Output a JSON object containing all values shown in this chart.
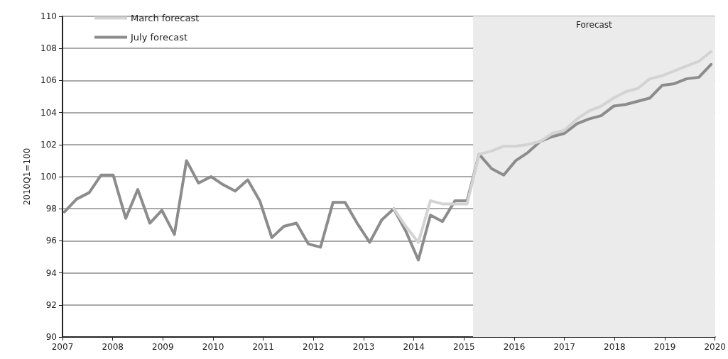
{
  "chart_data": {
    "type": "line",
    "ylabel": "2010Q1=100",
    "x": [
      2007.04,
      2007.28,
      2007.53,
      2007.77,
      2008.01,
      2008.26,
      2008.5,
      2008.74,
      2008.98,
      2009.23,
      2009.47,
      2009.71,
      2009.96,
      2010.2,
      2010.44,
      2010.69,
      2010.93,
      2011.17,
      2011.41,
      2011.66,
      2011.9,
      2012.14,
      2012.39,
      2012.63,
      2012.87,
      2013.12,
      2013.36,
      2013.6,
      2013.84,
      2014.09,
      2014.33,
      2014.57,
      2014.82,
      2015.06,
      2015.3,
      2015.55,
      2015.79,
      2016.03,
      2016.27,
      2016.52,
      2016.76,
      2017.0,
      2017.25,
      2017.49,
      2017.73,
      2017.98,
      2018.22,
      2018.46,
      2018.7,
      2018.95,
      2019.19,
      2019.43,
      2019.68,
      2019.92
    ],
    "series": [
      {
        "name": "March forecast",
        "color": "#d3d3d3",
        "values": [
          null,
          null,
          null,
          null,
          null,
          null,
          null,
          null,
          null,
          null,
          null,
          null,
          null,
          null,
          null,
          null,
          null,
          null,
          null,
          null,
          null,
          null,
          null,
          null,
          null,
          null,
          null,
          98.0,
          96.9,
          95.9,
          98.5,
          98.3,
          98.3,
          98.3,
          101.4,
          101.6,
          101.9,
          101.9,
          102.0,
          102.2,
          102.7,
          102.9,
          103.6,
          104.1,
          104.4,
          104.9,
          105.3,
          105.5,
          106.1,
          106.3,
          106.6,
          106.9,
          107.2,
          107.8
        ]
      },
      {
        "name": "July forecast",
        "color": "#8c8c8c",
        "values": [
          97.8,
          98.6,
          99.0,
          100.1,
          100.1,
          97.4,
          99.2,
          97.1,
          97.9,
          96.4,
          101.0,
          99.6,
          100.0,
          99.5,
          99.1,
          99.8,
          98.5,
          96.2,
          96.9,
          97.1,
          95.8,
          95.6,
          98.4,
          98.4,
          97.1,
          95.9,
          97.3,
          98.0,
          96.6,
          94.8,
          97.6,
          97.2,
          98.5,
          98.5,
          101.4,
          100.5,
          100.1,
          101.0,
          101.5,
          102.2,
          102.5,
          102.7,
          103.3,
          103.6,
          103.8,
          104.4,
          104.5,
          104.7,
          104.9,
          105.7,
          105.8,
          106.1,
          106.2,
          107.0
        ]
      }
    ],
    "xlim": [
      2007,
      2020
    ],
    "xticks": [
      2007,
      2008,
      2009,
      2010,
      2011,
      2012,
      2013,
      2014,
      2015,
      2016,
      2017,
      2018,
      2019,
      2020
    ],
    "ylim": [
      90,
      110
    ],
    "yticks": [
      90,
      92,
      94,
      96,
      98,
      100,
      102,
      104,
      106,
      108,
      110
    ],
    "bands": [
      {
        "axis": "x",
        "from": 2015.18,
        "to": 2020,
        "label": "Forecast",
        "color": "#ebebeb"
      }
    ],
    "grid": "y",
    "legend": "top left",
    "marker": "none",
    "line_style": "solid"
  }
}
